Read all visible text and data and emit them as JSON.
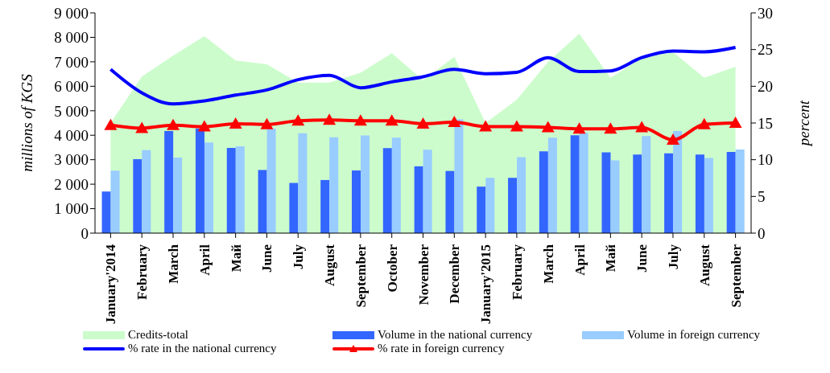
{
  "chart_data": {
    "type": "bar",
    "ylabel": "millions of KGS",
    "y2label": "percent",
    "categories": [
      "January'2014",
      "February",
      "March",
      "April",
      "Май",
      "June",
      "July",
      "August",
      "September",
      "October",
      "November",
      "December",
      "January'2015",
      "February",
      "March",
      "April",
      "Май",
      "June",
      "July",
      "August",
      "September"
    ],
    "series": [
      {
        "name": "Credits-total",
        "type": "area",
        "color": "#ccfccc",
        "values": [
          4500,
          6400,
          7250,
          8050,
          7050,
          6900,
          6150,
          6150,
          6550,
          7350,
          6250,
          7200,
          4500,
          5450,
          7000,
          8150,
          6350,
          7150,
          7400,
          6350,
          6800
        ]
      },
      {
        "name": "Volume in the national currency",
        "color": "#3366ff",
        "values": [
          1700,
          3020,
          4170,
          4270,
          3480,
          2580,
          2050,
          2170,
          2560,
          3470,
          2730,
          2540,
          1900,
          2260,
          3340,
          4000,
          3300,
          3210,
          3260,
          3210,
          3320
        ]
      },
      {
        "name": "Volume in foreign currency",
        "color": "#99ccff",
        "values": [
          2550,
          3390,
          3090,
          3700,
          3550,
          4270,
          4080,
          3920,
          3990,
          3900,
          3410,
          4650,
          2260,
          3100,
          3900,
          4100,
          2970,
          3970,
          4170,
          3070,
          3420
        ]
      },
      {
        "name": "% rate in the national currency",
        "type": "line",
        "axis": "y2",
        "marker": "none",
        "color": "#0000ff",
        "values": [
          22.3,
          19.1,
          17.6,
          18.0,
          18.8,
          19.5,
          20.9,
          21.5,
          19.8,
          20.6,
          21.3,
          22.3,
          21.7,
          21.9,
          23.9,
          22.0,
          22.1,
          23.9,
          24.8,
          24.7,
          25.3
        ]
      },
      {
        "name": "% rate in foreign currency",
        "type": "line",
        "axis": "y2",
        "marker": "triangle",
        "color": "#ff0000",
        "values": [
          14.7,
          14.3,
          14.7,
          14.5,
          14.9,
          14.8,
          15.3,
          15.4,
          15.3,
          15.3,
          14.9,
          15.1,
          14.5,
          14.5,
          14.4,
          14.2,
          14.2,
          14.4,
          12.7,
          14.8,
          15.0
        ]
      }
    ],
    "ylim": [
      0,
      9000
    ],
    "yticks": [
      0,
      {
        "value": 1000,
        "label": "1 000"
      },
      {
        "value": 2000,
        "label": "2 000"
      },
      {
        "value": 3000,
        "label": "3 000"
      },
      {
        "value": 4000,
        "label": "4 000"
      },
      {
        "value": 5000,
        "label": "5 000"
      },
      {
        "value": 6000,
        "label": "6 000"
      },
      {
        "value": 7000,
        "label": "7 000"
      },
      {
        "value": 8000,
        "label": "8 000"
      },
      {
        "value": 9000,
        "label": "9 000"
      }
    ],
    "y2lim": [
      0,
      30
    ],
    "y2ticks": [
      0,
      5,
      10,
      15,
      20,
      25,
      30
    ],
    "legend": "bottom",
    "grid": false,
    "line_style": "solid"
  }
}
